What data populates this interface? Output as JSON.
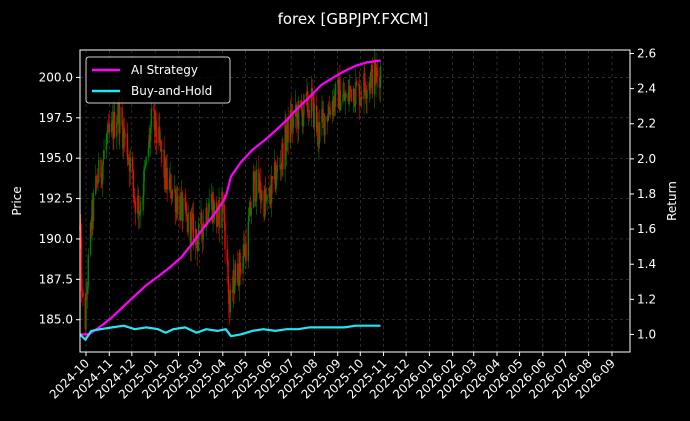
{
  "chart_data": {
    "type": "line",
    "title": "forex [GBPJPY.FXCM]",
    "ylabel": "Price",
    "ylabel_right": "Return",
    "ylim": [
      183.0,
      201.7
    ],
    "ylim_right": [
      0.9,
      2.62
    ],
    "yticks": [
      185.0,
      187.5,
      190.0,
      192.5,
      195.0,
      197.5,
      200.0
    ],
    "yticks_right": [
      1.0,
      1.2,
      1.4,
      1.6,
      1.8,
      2.0,
      2.2,
      2.4,
      2.6
    ],
    "x_start": "2024-09-23",
    "x_end": "2026-09-25",
    "x_ticks": [
      "2024-10",
      "2024-11",
      "2024-12",
      "2025-01",
      "2025-02",
      "2025-03",
      "2025-04",
      "2025-05",
      "2025-06",
      "2025-07",
      "2025-08",
      "2025-09",
      "2025-10",
      "2025-11",
      "2025-12",
      "2026-01",
      "2026-02",
      "2026-03",
      "2026-04",
      "2026-05",
      "2026-06",
      "2026-07",
      "2026-08",
      "2026-09"
    ],
    "grid": true,
    "legend_position": "top-left",
    "price_anchors": [
      [
        "2024-09-23",
        190.5
      ],
      [
        "2024-09-26",
        186.0
      ],
      [
        "2024-09-30",
        185.0
      ],
      [
        "2024-10-03",
        187.5
      ],
      [
        "2024-10-08",
        191.0
      ],
      [
        "2024-10-15",
        193.5
      ],
      [
        "2024-10-22",
        194.5
      ],
      [
        "2024-10-28",
        196.0
      ],
      [
        "2024-11-04",
        196.5
      ],
      [
        "2024-11-12",
        198.0
      ],
      [
        "2024-11-20",
        196.5
      ],
      [
        "2024-11-28",
        195.0
      ],
      [
        "2024-12-05",
        192.5
      ],
      [
        "2024-12-12",
        192.0
      ],
      [
        "2024-12-20",
        194.5
      ],
      [
        "2024-12-28",
        197.5
      ],
      [
        "2025-01-08",
        195.5
      ],
      [
        "2025-01-16",
        193.5
      ],
      [
        "2025-01-25",
        193.0
      ],
      [
        "2025-02-03",
        192.0
      ],
      [
        "2025-02-12",
        191.0
      ],
      [
        "2025-02-20",
        190.5
      ],
      [
        "2025-02-28",
        190.0
      ],
      [
        "2025-03-08",
        191.5
      ],
      [
        "2025-03-16",
        192.5
      ],
      [
        "2025-03-25",
        191.0
      ],
      [
        "2025-04-01",
        192.5
      ],
      [
        "2025-04-06",
        189.0
      ],
      [
        "2025-04-10",
        185.5
      ],
      [
        "2025-04-16",
        187.5
      ],
      [
        "2025-04-25",
        188.5
      ],
      [
        "2025-05-04",
        190.0
      ],
      [
        "2025-05-12",
        193.5
      ],
      [
        "2025-05-20",
        193.0
      ],
      [
        "2025-05-30",
        192.0
      ],
      [
        "2025-06-08",
        193.5
      ],
      [
        "2025-06-18",
        195.0
      ],
      [
        "2025-06-28",
        197.0
      ],
      [
        "2025-07-08",
        197.5
      ],
      [
        "2025-07-18",
        198.0
      ],
      [
        "2025-07-28",
        198.5
      ],
      [
        "2025-08-06",
        196.5
      ],
      [
        "2025-08-14",
        197.5
      ],
      [
        "2025-08-24",
        198.5
      ],
      [
        "2025-09-03",
        199.0
      ],
      [
        "2025-09-12",
        198.5
      ],
      [
        "2025-09-20",
        199.5
      ],
      [
        "2025-09-28",
        199.0
      ],
      [
        "2025-10-06",
        199.5
      ],
      [
        "2025-10-14",
        200.0
      ],
      [
        "2025-10-22",
        200.0
      ],
      [
        "2025-10-28",
        200.5
      ]
    ],
    "series": [
      {
        "name": "AI Strategy",
        "color": "#ff00ff",
        "axis": "right",
        "points": [
          [
            "2024-09-23",
            1.0
          ],
          [
            "2024-10-05",
            1.0
          ],
          [
            "2024-10-15",
            1.03
          ],
          [
            "2024-10-25",
            1.06
          ],
          [
            "2024-11-05",
            1.1
          ],
          [
            "2024-11-20",
            1.16
          ],
          [
            "2024-12-05",
            1.22
          ],
          [
            "2024-12-20",
            1.28
          ],
          [
            "2025-01-05",
            1.33
          ],
          [
            "2025-01-20",
            1.38
          ],
          [
            "2025-02-05",
            1.44
          ],
          [
            "2025-02-20",
            1.52
          ],
          [
            "2025-03-05",
            1.6
          ],
          [
            "2025-03-20",
            1.68
          ],
          [
            "2025-04-02",
            1.76
          ],
          [
            "2025-04-06",
            1.8
          ],
          [
            "2025-04-12",
            1.9
          ],
          [
            "2025-04-25",
            1.98
          ],
          [
            "2025-05-10",
            2.05
          ],
          [
            "2025-05-25",
            2.1
          ],
          [
            "2025-06-10",
            2.16
          ],
          [
            "2025-06-25",
            2.22
          ],
          [
            "2025-07-10",
            2.29
          ],
          [
            "2025-07-25",
            2.35
          ],
          [
            "2025-08-10",
            2.42
          ],
          [
            "2025-08-25",
            2.46
          ],
          [
            "2025-09-10",
            2.5
          ],
          [
            "2025-09-25",
            2.53
          ],
          [
            "2025-10-10",
            2.55
          ],
          [
            "2025-10-28",
            2.56
          ]
        ]
      },
      {
        "name": "Buy-and-Hold",
        "color": "#22e6f2",
        "axis": "right",
        "points": [
          [
            "2024-09-23",
            1.0
          ],
          [
            "2024-09-30",
            0.97
          ],
          [
            "2024-10-08",
            1.02
          ],
          [
            "2024-10-20",
            1.03
          ],
          [
            "2024-11-05",
            1.04
          ],
          [
            "2024-11-20",
            1.05
          ],
          [
            "2024-12-05",
            1.03
          ],
          [
            "2024-12-20",
            1.04
          ],
          [
            "2025-01-05",
            1.03
          ],
          [
            "2025-01-15",
            1.01
          ],
          [
            "2025-01-25",
            1.03
          ],
          [
            "2025-02-10",
            1.04
          ],
          [
            "2025-02-25",
            1.01
          ],
          [
            "2025-03-10",
            1.03
          ],
          [
            "2025-03-25",
            1.02
          ],
          [
            "2025-04-05",
            1.03
          ],
          [
            "2025-04-12",
            0.99
          ],
          [
            "2025-04-25",
            1.0
          ],
          [
            "2025-05-10",
            1.02
          ],
          [
            "2025-05-25",
            1.03
          ],
          [
            "2025-06-10",
            1.02
          ],
          [
            "2025-06-25",
            1.03
          ],
          [
            "2025-07-10",
            1.03
          ],
          [
            "2025-07-25",
            1.04
          ],
          [
            "2025-08-10",
            1.04
          ],
          [
            "2025-08-25",
            1.04
          ],
          [
            "2025-09-10",
            1.04
          ],
          [
            "2025-09-25",
            1.05
          ],
          [
            "2025-10-10",
            1.05
          ],
          [
            "2025-10-28",
            1.05
          ]
        ]
      }
    ],
    "candle_colors": {
      "up": "#008000",
      "down": "#ff0000"
    }
  }
}
